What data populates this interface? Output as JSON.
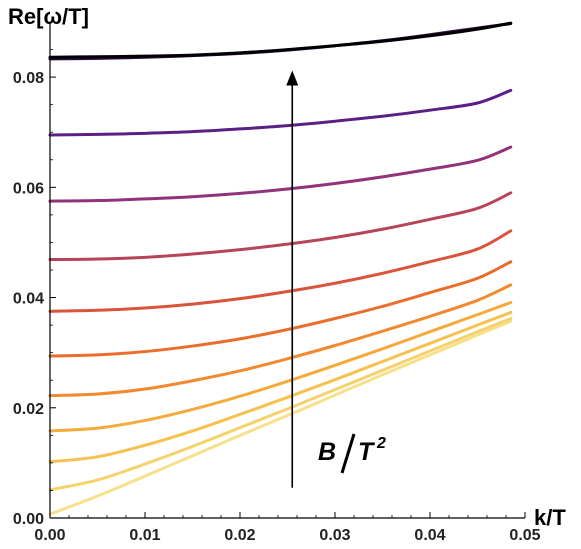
{
  "chart_data": {
    "type": "line",
    "title": "",
    "xlabel": "k/T",
    "ylabel": "Re[ω/T]",
    "xlim": [
      0,
      0.05
    ],
    "ylim": [
      0,
      0.09
    ],
    "xticks": [
      "0.00",
      "0.01",
      "0.02",
      "0.03",
      "0.04",
      "0.05"
    ],
    "xtick_values": [
      0,
      0.01,
      0.02,
      0.03,
      0.04,
      0.05
    ],
    "yticks": [
      "0.00",
      "0.02",
      "0.04",
      "0.06",
      "0.08"
    ],
    "ytick_values": [
      0,
      0.02,
      0.04,
      0.06,
      0.08
    ],
    "grid": false,
    "x": [
      0,
      0.005,
      0.01,
      0.015,
      0.02,
      0.025,
      0.03,
      0.035,
      0.04,
      0.045,
      0.0485
    ],
    "series": [
      {
        "color": "#f7e08c",
        "values": [
          0.0007,
          0.004,
          0.0076,
          0.0113,
          0.015,
          0.0186,
          0.0223,
          0.026,
          0.0296,
          0.0332,
          0.0357
        ]
      },
      {
        "color": "#f6d26a",
        "values": [
          0.0051,
          0.0069,
          0.0098,
          0.013,
          0.0164,
          0.0198,
          0.0233,
          0.0268,
          0.0303,
          0.0338,
          0.0362
        ]
      },
      {
        "color": "#f6c14e",
        "values": [
          0.0102,
          0.0111,
          0.0132,
          0.0158,
          0.0188,
          0.0219,
          0.0251,
          0.0284,
          0.0317,
          0.035,
          0.0373
        ]
      },
      {
        "color": "#f5aa3c",
        "values": [
          0.0158,
          0.0163,
          0.0177,
          0.0197,
          0.0221,
          0.0248,
          0.0277,
          0.0307,
          0.0338,
          0.0369,
          0.0391
        ]
      },
      {
        "color": "#f2892f",
        "values": [
          0.0222,
          0.0225,
          0.0234,
          0.0249,
          0.0267,
          0.0289,
          0.0313,
          0.0339,
          0.0366,
          0.0395,
          0.0423
        ]
      },
      {
        "color": "#ea6d2b",
        "values": [
          0.0294,
          0.0296,
          0.0302,
          0.0312,
          0.0325,
          0.0342,
          0.0362,
          0.0384,
          0.0409,
          0.0435,
          0.0465
        ]
      },
      {
        "color": "#d9543a",
        "values": [
          0.0375,
          0.0377,
          0.0381,
          0.0388,
          0.0398,
          0.0411,
          0.0426,
          0.0444,
          0.0465,
          0.0488,
          0.0521
        ]
      },
      {
        "color": "#b8445a",
        "values": [
          0.0469,
          0.047,
          0.0473,
          0.0479,
          0.0487,
          0.0497,
          0.0509,
          0.0524,
          0.0542,
          0.0562,
          0.059
        ]
      },
      {
        "color": "#92327a",
        "values": [
          0.0575,
          0.0576,
          0.0579,
          0.0583,
          0.0589,
          0.0597,
          0.0607,
          0.0619,
          0.0633,
          0.0649,
          0.0673
        ]
      },
      {
        "color": "#5b1f86",
        "values": [
          0.0695,
          0.0696,
          0.0698,
          0.0701,
          0.0706,
          0.0712,
          0.072,
          0.0729,
          0.074,
          0.0753,
          0.0776
        ]
      },
      {
        "color": "#2a0c3e",
        "values": [
          0.0833,
          0.0834,
          0.0836,
          0.0839,
          0.0843,
          0.0849,
          0.0857,
          0.0866,
          0.0877,
          0.0889,
          0.0897
        ]
      },
      {
        "color": "#000000",
        "values": [
          0.0836,
          0.0837,
          0.0838,
          0.084,
          0.0844,
          0.085,
          0.0857,
          0.0865,
          0.0875,
          0.0887,
          0.0898
        ]
      }
    ],
    "annotation": {
      "text_main": "B",
      "text_denom": "T",
      "text_power": "2",
      "arrow_from": [
        0.0255,
        0.0055
      ],
      "arrow_to": [
        0.0255,
        0.0812
      ]
    },
    "colors": {
      "axis": "#000000",
      "tick_text": "#222222",
      "arrow": "#000000"
    }
  }
}
